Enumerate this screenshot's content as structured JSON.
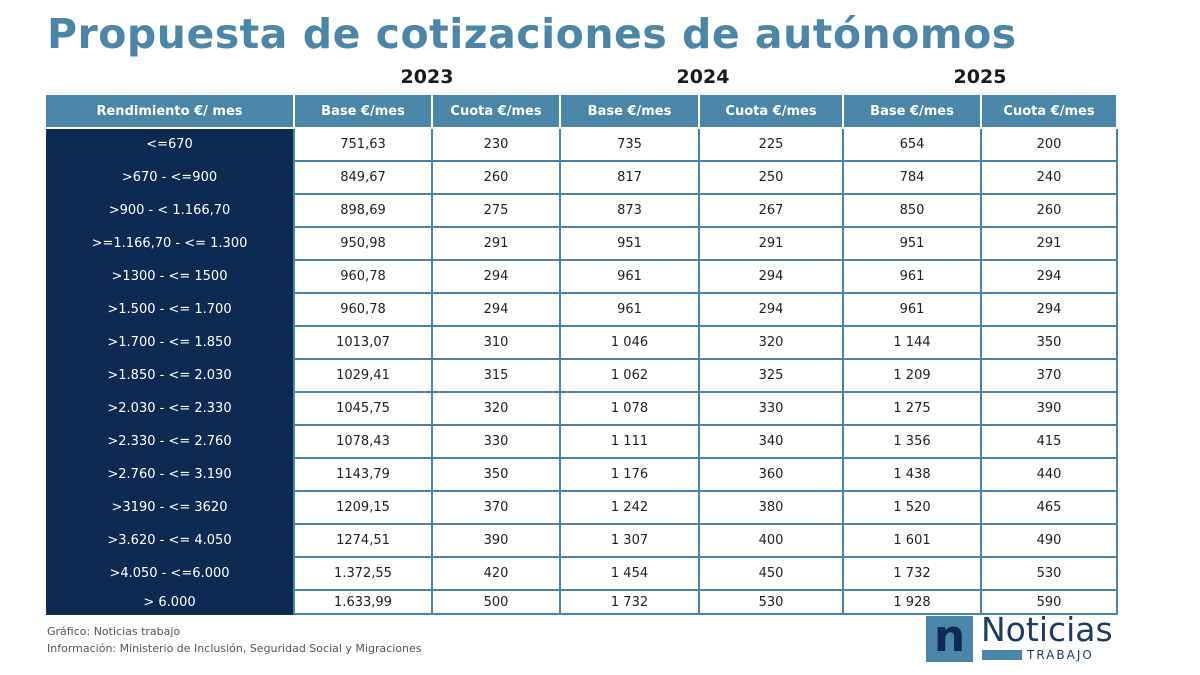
{
  "title": "Propuesta de cotizaciones de autónomos",
  "chart_data": {
    "type": "table",
    "years": [
      "2023",
      "2024",
      "2025"
    ],
    "columns": [
      "Rendimiento  €/ mes",
      "Base €/mes",
      "Cuota €/mes",
      "Base €/mes",
      "Cuota €/mes",
      "Base €/mes",
      "Cuota €/mes"
    ],
    "rows": [
      [
        "<=670",
        "751,63",
        "230",
        "735",
        "225",
        "654",
        "200"
      ],
      [
        ">670 -  <=900",
        "849,67",
        "260",
        "817",
        "250",
        "784",
        "240"
      ],
      [
        ">900 - < 1.166,70",
        "898,69",
        "275",
        "873",
        "267",
        "850",
        "260"
      ],
      [
        ">=1.166,70 - <= 1.300",
        "950,98",
        "291",
        "951",
        "291",
        "951",
        "291"
      ],
      [
        ">1300 -  <= 1500",
        "960,78",
        "294",
        "961",
        "294",
        "961",
        "294"
      ],
      [
        ">1.500  - <= 1.700",
        "960,78",
        "294",
        "961",
        "294",
        "961",
        "294"
      ],
      [
        ">1.700  - <= 1.850",
        "1013,07",
        "310",
        "1 046",
        "320",
        "1 144",
        "350"
      ],
      [
        ">1.850  - <= 2.030",
        "1029,41",
        "315",
        "1 062",
        "325",
        "1 209",
        "370"
      ],
      [
        ">2.030  - <= 2.330",
        "1045,75",
        "320",
        "1 078",
        "330",
        "1 275",
        "390"
      ],
      [
        ">2.330 - <= 2.760",
        "1078,43",
        "330",
        "1 111",
        "340",
        "1 356",
        "415"
      ],
      [
        ">2.760  - <= 3.190",
        "1143,79",
        "350",
        "1 176",
        "360",
        "1 438",
        "440"
      ],
      [
        ">3190 - <= 3620",
        "1209,15",
        "370",
        "1 242",
        "380",
        "1 520",
        "465"
      ],
      [
        ">3.620  - <= 4.050",
        "1274,51",
        "390",
        "1 307",
        "400",
        "1 601",
        "490"
      ],
      [
        ">4.050 - <=6.000",
        "1.372,55",
        "420",
        "1 454",
        "450",
        "1 732",
        "530"
      ],
      [
        "> 6.000",
        "1.633,99",
        "500",
        "1 732",
        "530",
        "1 928",
        "590"
      ]
    ]
  },
  "footer": {
    "line1": "Gráfico: Noticias trabajo",
    "line2": "Información: Ministerio de Inclusión, Seguridad Social y Migraciones"
  },
  "logo": {
    "letter": "n",
    "word": "Noticias",
    "sub": "TRABAJO"
  },
  "colors": {
    "accent": "#4b86a8",
    "navy": "#0d2a52"
  }
}
